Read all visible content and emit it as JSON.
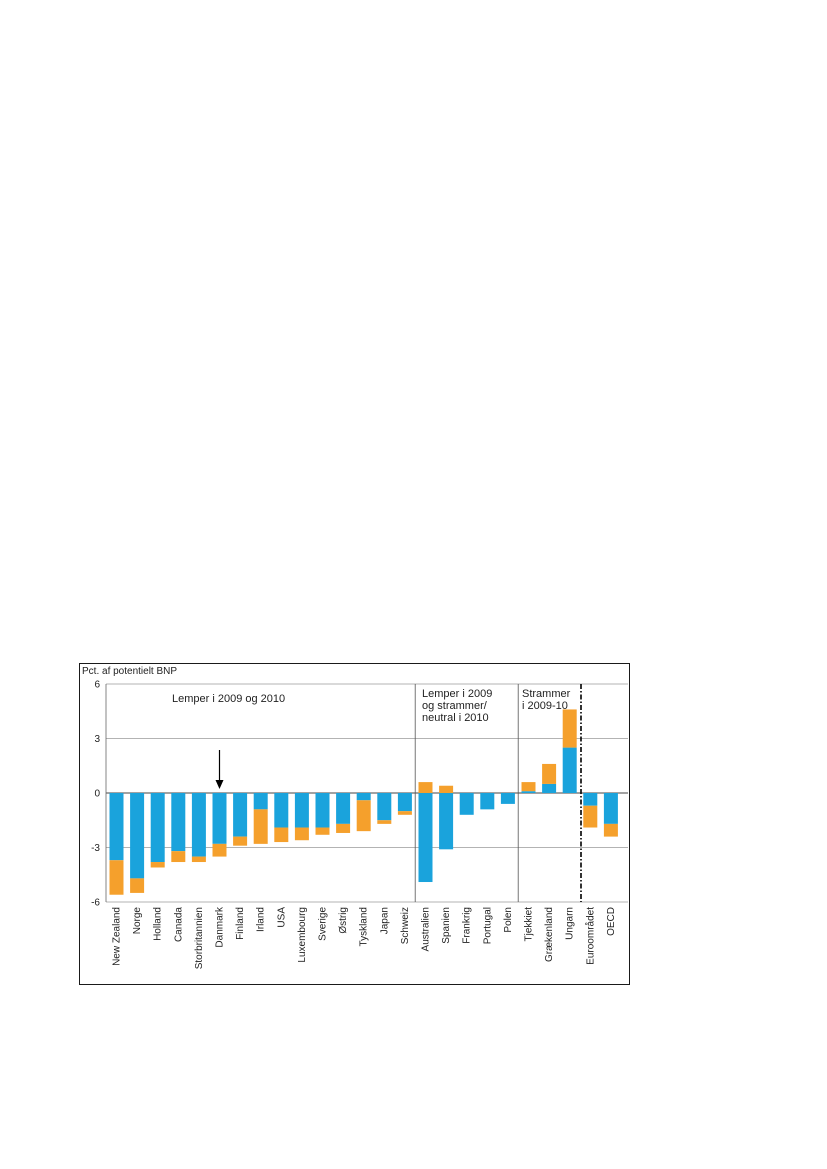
{
  "chart_data": {
    "type": "bar",
    "stacked": true,
    "ylabel": "Pct. af potentielt BNP",
    "ylim": [
      -6,
      6
    ],
    "yticks": [
      "6",
      "3",
      "0",
      "-3",
      "-6"
    ],
    "grid": true,
    "colors": {
      "blue": "#1aa3dc",
      "orange": "#f5a02c"
    },
    "categories": [
      "New Zealand",
      "Norge",
      "Holland",
      "Canada",
      "Storbritannien",
      "Danmark",
      "Finland",
      "Irland",
      "USA",
      "Luxembourg",
      "Sverige",
      "Østrig",
      "Tyskland",
      "Japan",
      "Schweiz",
      "Australien",
      "Spanien",
      "Frankrig",
      "Portugal",
      "Polen",
      "Tjekkiet",
      "Grækenland",
      "Ungarn",
      "Euroområdet",
      "OECD"
    ],
    "bars": [
      {
        "blue": [
          0,
          -3.7
        ],
        "orange": [
          -3.7,
          -5.6
        ]
      },
      {
        "blue": [
          0,
          -4.7
        ],
        "orange": [
          -4.7,
          -5.5
        ]
      },
      {
        "blue": [
          0,
          -3.8
        ],
        "orange": [
          -3.8,
          -4.1
        ]
      },
      {
        "blue": [
          0,
          -3.2
        ],
        "orange": [
          -3.2,
          -3.8
        ]
      },
      {
        "blue": [
          0,
          -3.5
        ],
        "orange": [
          -3.5,
          -3.8
        ]
      },
      {
        "blue": [
          0,
          -2.8
        ],
        "orange": [
          -2.8,
          -3.5
        ]
      },
      {
        "blue": [
          0,
          -2.4
        ],
        "orange": [
          -2.4,
          -2.9
        ]
      },
      {
        "blue": [
          0,
          -0.9
        ],
        "orange": [
          -0.9,
          -2.8
        ]
      },
      {
        "blue": [
          0,
          -1.9
        ],
        "orange": [
          -1.9,
          -2.7
        ]
      },
      {
        "blue": [
          0,
          -1.9
        ],
        "orange": [
          -1.9,
          -2.6
        ]
      },
      {
        "blue": [
          0,
          -1.9
        ],
        "orange": [
          -1.9,
          -2.3
        ]
      },
      {
        "blue": [
          0,
          -1.7
        ],
        "orange": [
          -1.7,
          -2.2
        ]
      },
      {
        "blue": [
          0,
          -0.4
        ],
        "orange": [
          -0.4,
          -2.1
        ]
      },
      {
        "blue": [
          0,
          -1.5
        ],
        "orange": [
          -1.5,
          -1.7
        ]
      },
      {
        "blue": [
          0,
          -1.0
        ],
        "orange": [
          -1.0,
          -1.2
        ]
      },
      {
        "blue": [
          0,
          -4.9
        ],
        "orange": [
          0,
          0.6
        ]
      },
      {
        "blue": [
          0,
          -3.1
        ],
        "orange": [
          0,
          0.4
        ]
      },
      {
        "blue": [
          0,
          -1.2
        ],
        "orange": null
      },
      {
        "blue": [
          0,
          -0.9
        ],
        "orange": null
      },
      {
        "blue": [
          0,
          -0.6
        ],
        "orange": null
      },
      {
        "blue": [
          0,
          0.1
        ],
        "orange": [
          0.1,
          0.6
        ]
      },
      {
        "blue": [
          0,
          0.5
        ],
        "orange": [
          0.5,
          1.6
        ]
      },
      {
        "blue": [
          0,
          2.5
        ],
        "orange": [
          2.5,
          4.6
        ]
      },
      {
        "blue": [
          0,
          -0.7
        ],
        "orange": [
          -0.7,
          -1.9
        ]
      },
      {
        "blue": [
          0,
          -1.7
        ],
        "orange": [
          -1.7,
          -2.4
        ]
      }
    ],
    "group_labels": [
      [
        "Lemper i 2009 og 2010"
      ],
      [
        "Lemper i 2009",
        "og strammer/",
        "neutral i 2010"
      ],
      [
        "Strammer",
        "i 2009-10"
      ]
    ],
    "highlight": "Danmark"
  }
}
